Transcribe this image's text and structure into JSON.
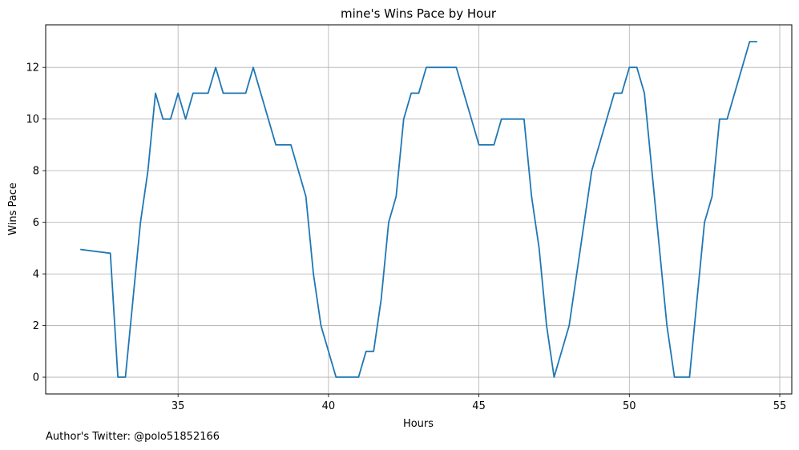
{
  "chart_data": {
    "type": "line",
    "title": "mine's Wins Pace by Hour",
    "xlabel": "Hours",
    "ylabel": "Wins Pace",
    "xlim": [
      30.6,
      55.4
    ],
    "ylim": [
      -0.65,
      13.65
    ],
    "xticks": [
      35,
      40,
      45,
      50,
      55
    ],
    "yticks": [
      0,
      2,
      4,
      6,
      8,
      10,
      12
    ],
    "grid": true,
    "line_color": "#1f77b4",
    "series": [
      {
        "x": [
          31.75,
          32.75,
          33.0,
          33.25,
          33.75,
          34.0,
          34.25,
          34.5,
          34.75,
          35.0,
          35.25,
          35.5,
          36.0,
          36.25,
          36.5,
          37.25,
          37.5,
          38.25,
          38.75,
          39.25,
          39.5,
          39.75,
          40.0,
          40.25,
          41.0,
          41.25,
          41.5,
          41.75,
          42.0,
          42.25,
          42.5,
          42.75,
          43.0,
          43.25,
          44.25,
          45.0,
          45.5,
          45.75,
          46.5,
          46.75,
          47.0,
          47.25,
          47.5,
          48.0,
          48.25,
          48.75,
          49.5,
          49.75,
          50.0,
          50.25,
          50.5,
          51.0,
          51.25,
          51.5,
          52.0,
          52.25,
          52.5,
          52.75,
          53.0,
          53.25,
          54.0,
          54.25
        ],
        "y": [
          4.95,
          4.8,
          0,
          0,
          6,
          8,
          11,
          10,
          10,
          11,
          10,
          11,
          11,
          12,
          11,
          11,
          12,
          9,
          9,
          7,
          4,
          2,
          1,
          0,
          0,
          1,
          1,
          3,
          6,
          7,
          10,
          11,
          11,
          12,
          12,
          9,
          9,
          10,
          10,
          7,
          5,
          2,
          0,
          2,
          4,
          8,
          11,
          11,
          12,
          12,
          11,
          5,
          2,
          0,
          0,
          3,
          6,
          7,
          10,
          10,
          13,
          13
        ]
      }
    ]
  },
  "footer_note": "Author's Twitter: @polo51852166"
}
